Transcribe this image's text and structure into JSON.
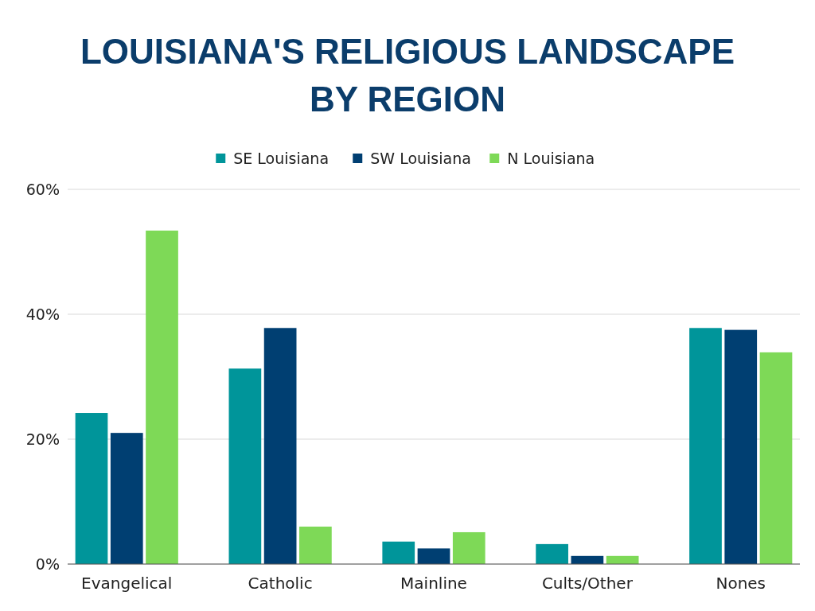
{
  "chart_data": {
    "type": "bar",
    "title": "LOUISIANA'S RELIGIOUS LANDSCAPE BY REGION",
    "categories": [
      "Evangelical",
      "Catholic",
      "Mainline",
      "Cults/Other",
      "Nones"
    ],
    "series": [
      {
        "name": "SE Louisiana",
        "color": "#00959a",
        "values": [
          24.2,
          31.3,
          3.6,
          3.2,
          37.8
        ]
      },
      {
        "name": "SW Louisiana",
        "color": "#003f72",
        "values": [
          21.0,
          37.8,
          2.5,
          1.3,
          37.5
        ]
      },
      {
        "name": "N Louisiana",
        "color": "#7ed957",
        "values": [
          53.4,
          6.0,
          5.1,
          1.3,
          33.9
        ]
      }
    ],
    "ylim": [
      0,
      60
    ],
    "yticks": [
      {
        "value": 0,
        "label": "0%"
      },
      {
        "value": 20,
        "label": "20%"
      },
      {
        "value": 40,
        "label": "40%"
      },
      {
        "value": 60,
        "label": "60%"
      }
    ],
    "grid": "y",
    "legend": "top"
  }
}
